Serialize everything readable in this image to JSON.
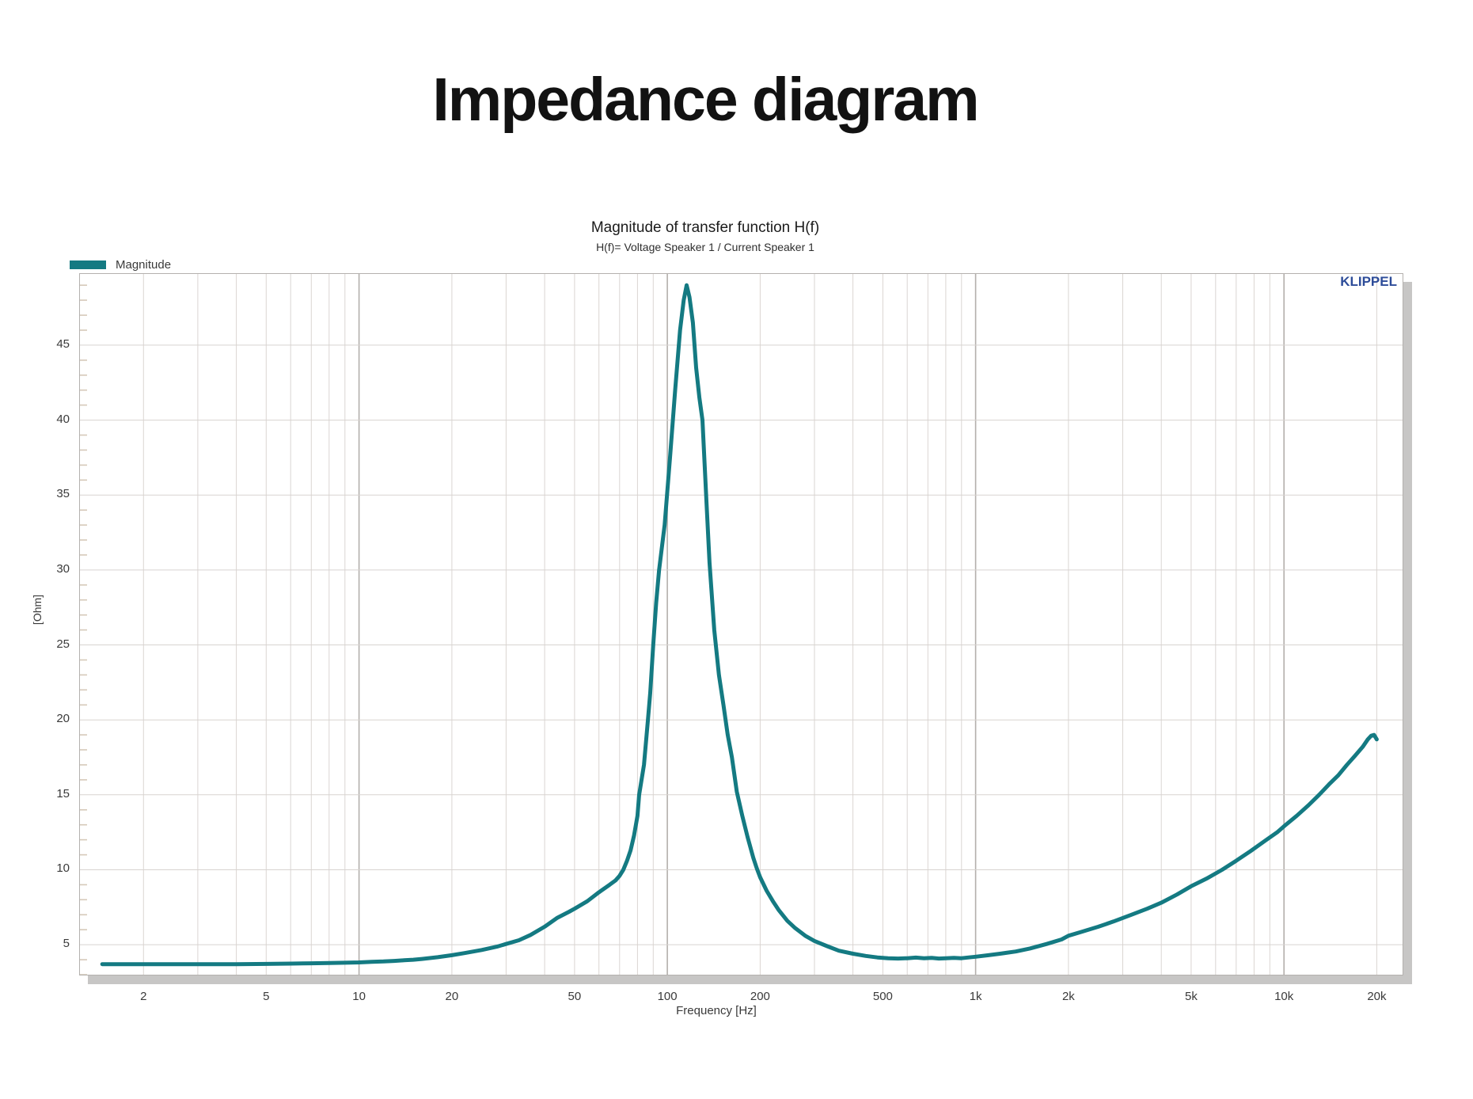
{
  "page": {
    "title": "Impedance diagram"
  },
  "chart": {
    "title": "Magnitude of transfer function H(f)",
    "subtitle": "H(f)= Voltage Speaker 1 / Current Speaker 1",
    "brand": "KLIPPEL",
    "brand_color": "#2d4c99",
    "legend_position": "top-left"
  },
  "chart_data": {
    "type": "line",
    "title": "Magnitude of transfer function H(f)",
    "subtitle": "H(f)= Voltage Speaker 1 / Current Speaker 1",
    "xlabel": "Frequency [Hz]",
    "ylabel": "[Ohm]",
    "x_scale": "log",
    "grid": true,
    "legend_position": "top-left",
    "xlim": [
      1.244,
      24246
    ],
    "ylim": [
      3.0,
      49.75
    ],
    "x_ticks": [
      {
        "f": 2,
        "label": "2"
      },
      {
        "f": 5,
        "label": "5"
      },
      {
        "f": 10,
        "label": "10"
      },
      {
        "f": 20,
        "label": "20"
      },
      {
        "f": 50,
        "label": "50"
      },
      {
        "f": 100,
        "label": "100"
      },
      {
        "f": 200,
        "label": "200"
      },
      {
        "f": 500,
        "label": "500"
      },
      {
        "f": 1000,
        "label": "1k"
      },
      {
        "f": 2000,
        "label": "2k"
      },
      {
        "f": 5000,
        "label": "5k"
      },
      {
        "f": 10000,
        "label": "10k"
      },
      {
        "f": 20000,
        "label": "20k"
      }
    ],
    "y_ticks": [
      5,
      10,
      15,
      20,
      25,
      30,
      35,
      40,
      45
    ],
    "series": [
      {
        "name": "Magnitude",
        "color": "#147a82",
        "points": [
          [
            1.47,
            3.7
          ],
          [
            2,
            3.7
          ],
          [
            2.5,
            3.7
          ],
          [
            3,
            3.7
          ],
          [
            4,
            3.7
          ],
          [
            5,
            3.72
          ],
          [
            6,
            3.74
          ],
          [
            7,
            3.76
          ],
          [
            8,
            3.78
          ],
          [
            9,
            3.8
          ],
          [
            10,
            3.82
          ],
          [
            11,
            3.86
          ],
          [
            12,
            3.88
          ],
          [
            13,
            3.92
          ],
          [
            14,
            3.96
          ],
          [
            15,
            4.0
          ],
          [
            16,
            4.05
          ],
          [
            18,
            4.17
          ],
          [
            20,
            4.3
          ],
          [
            22,
            4.44
          ],
          [
            25,
            4.65
          ],
          [
            28,
            4.87
          ],
          [
            30,
            5.05
          ],
          [
            33,
            5.3
          ],
          [
            36,
            5.65
          ],
          [
            40,
            6.2
          ],
          [
            44,
            6.8
          ],
          [
            48,
            7.2
          ],
          [
            50,
            7.4
          ],
          [
            55,
            7.9
          ],
          [
            60,
            8.5
          ],
          [
            65,
            9.0
          ],
          [
            68,
            9.3
          ],
          [
            70,
            9.6
          ],
          [
            72,
            10.0
          ],
          [
            74,
            10.6
          ],
          [
            76,
            11.3
          ],
          [
            78,
            12.3
          ],
          [
            80,
            13.6
          ],
          [
            81,
            15.0
          ],
          [
            84,
            17.0
          ],
          [
            86.5,
            20.0
          ],
          [
            88,
            21.8
          ],
          [
            90,
            25.0
          ],
          [
            92,
            27.8
          ],
          [
            94,
            30.0
          ],
          [
            98,
            33.0
          ],
          [
            102,
            37.5
          ],
          [
            106,
            42.0
          ],
          [
            110,
            46.0
          ],
          [
            113,
            48.0
          ],
          [
            115.5,
            49.0
          ],
          [
            118,
            48.2
          ],
          [
            121,
            46.5
          ],
          [
            124,
            43.5
          ],
          [
            127,
            41.5
          ],
          [
            130,
            40.0
          ],
          [
            134,
            34.5
          ],
          [
            137,
            30.5
          ],
          [
            142,
            26.0
          ],
          [
            147,
            23.0
          ],
          [
            152,
            21.0
          ],
          [
            157,
            19.0
          ],
          [
            162,
            17.5
          ],
          [
            168,
            15.2
          ],
          [
            175,
            13.6
          ],
          [
            182,
            12.2
          ],
          [
            190,
            10.8
          ],
          [
            195,
            10.1
          ],
          [
            200,
            9.5
          ],
          [
            210,
            8.6
          ],
          [
            220,
            7.9
          ],
          [
            230,
            7.3
          ],
          [
            245,
            6.6
          ],
          [
            260,
            6.1
          ],
          [
            280,
            5.6
          ],
          [
            300,
            5.25
          ],
          [
            330,
            4.9
          ],
          [
            360,
            4.6
          ],
          [
            400,
            4.4
          ],
          [
            440,
            4.25
          ],
          [
            480,
            4.15
          ],
          [
            520,
            4.1
          ],
          [
            560,
            4.08
          ],
          [
            600,
            4.1
          ],
          [
            640,
            4.14
          ],
          [
            680,
            4.1
          ],
          [
            720,
            4.12
          ],
          [
            760,
            4.08
          ],
          [
            800,
            4.1
          ],
          [
            850,
            4.12
          ],
          [
            900,
            4.1
          ],
          [
            950,
            4.15
          ],
          [
            1000,
            4.2
          ],
          [
            1100,
            4.3
          ],
          [
            1200,
            4.4
          ],
          [
            1350,
            4.55
          ],
          [
            1500,
            4.75
          ],
          [
            1700,
            5.05
          ],
          [
            1900,
            5.35
          ],
          [
            2000,
            5.6
          ],
          [
            2200,
            5.85
          ],
          [
            2500,
            6.2
          ],
          [
            2800,
            6.55
          ],
          [
            3200,
            7.0
          ],
          [
            3600,
            7.4
          ],
          [
            4000,
            7.8
          ],
          [
            4500,
            8.35
          ],
          [
            5000,
            8.9
          ],
          [
            5600,
            9.4
          ],
          [
            6300,
            10.0
          ],
          [
            7000,
            10.6
          ],
          [
            7800,
            11.25
          ],
          [
            8700,
            11.95
          ],
          [
            9500,
            12.5
          ],
          [
            10000,
            12.9
          ],
          [
            11000,
            13.6
          ],
          [
            12000,
            14.3
          ],
          [
            13000,
            15.0
          ],
          [
            14000,
            15.7
          ],
          [
            15000,
            16.3
          ],
          [
            16000,
            17.0
          ],
          [
            17000,
            17.6
          ],
          [
            18000,
            18.2
          ],
          [
            18700,
            18.7
          ],
          [
            19200,
            18.95
          ],
          [
            19600,
            19.0
          ],
          [
            20000,
            18.7
          ]
        ]
      }
    ]
  }
}
